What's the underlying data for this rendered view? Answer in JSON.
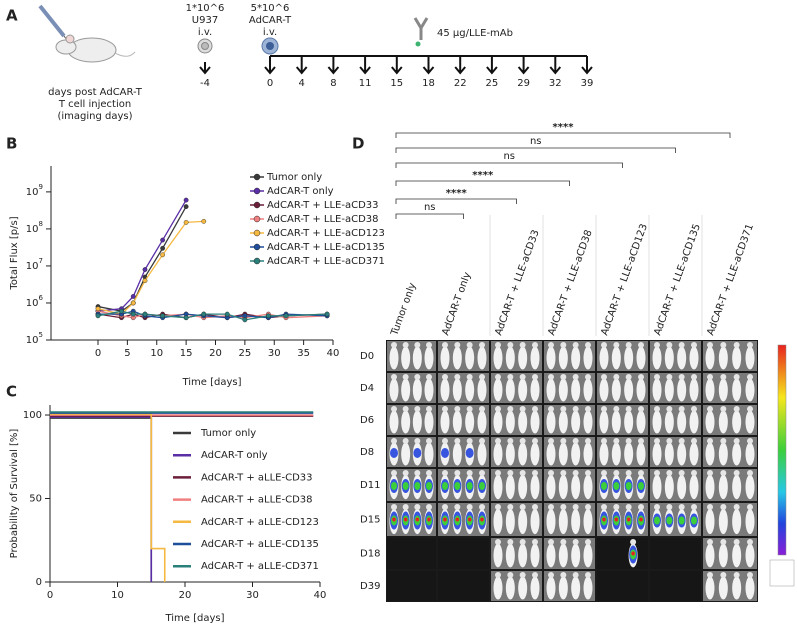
{
  "panel_a": {
    "label": "A",
    "doses": [
      {
        "amount": "1*10^6",
        "cells": "U937",
        "route": "i.v."
      },
      {
        "amount": "5*10^6",
        "cells": "AdCAR-T",
        "route": "i.v."
      }
    ],
    "antibody": "45 µg/LLE-mAb",
    "caption": [
      "days post AdCAR-T",
      "T cell injection",
      "(imaging days)"
    ],
    "days": [
      -4,
      0,
      4,
      8,
      11,
      15,
      18,
      22,
      25,
      29,
      32,
      39
    ]
  },
  "chart_data": [
    {
      "type": "line",
      "label": "B",
      "x_label": "Time [days]",
      "y_label": "Total Flux [p/s]",
      "log_y": true,
      "x": [
        0,
        4,
        6,
        8,
        11,
        15,
        18,
        22,
        25,
        29,
        32,
        39
      ],
      "series": [
        {
          "name": "Tumor only",
          "color": "#3a3a3a",
          "values": [
            800000,
            600000,
            1000000,
            5000000,
            30000000,
            400000000,
            null,
            null,
            null,
            null,
            null,
            null
          ]
        },
        {
          "name": "AdCAR-T only",
          "color": "#5a2ea6",
          "values": [
            600000,
            700000,
            1500000,
            8000000,
            50000000,
            600000000,
            null,
            null,
            null,
            null,
            null,
            null
          ]
        },
        {
          "name": "AdCAR-T + LLE-aCD33",
          "color": "#6b1f3a",
          "values": [
            500000,
            400000,
            500000,
            400000,
            500000,
            400000,
            500000,
            400000,
            500000,
            400000,
            450000,
            500000
          ]
        },
        {
          "name": "AdCAR-T + LLE-aCD38",
          "color": "#f08080",
          "values": [
            600000,
            450000,
            400000,
            500000,
            450000,
            500000,
            400000,
            450000,
            400000,
            500000,
            400000,
            450000
          ]
        },
        {
          "name": "AdCAR-T + LLE-aCD123",
          "color": "#f5b942",
          "values": [
            700000,
            500000,
            1000000,
            4000000,
            20000000,
            150000000,
            160000000,
            null,
            null,
            null,
            null,
            null
          ]
        },
        {
          "name": "AdCAR-T + LLE-aCD135",
          "color": "#1f4e9b",
          "values": [
            500000,
            500000,
            600000,
            450000,
            400000,
            500000,
            450000,
            400000,
            450000,
            400000,
            500000,
            450000
          ]
        },
        {
          "name": "AdCAR-T + LLE-aCD371",
          "color": "#2a7f7a",
          "values": [
            450000,
            600000,
            500000,
            500000,
            450000,
            400000,
            500000,
            500000,
            350000,
            450000,
            450000,
            500000
          ]
        }
      ],
      "xlim": [
        -8,
        40
      ],
      "ylim": [
        100000,
        5000000000
      ],
      "xticks": [
        0,
        5,
        10,
        15,
        20,
        25,
        30,
        35,
        40
      ],
      "yticks": [
        {
          "value": 100000,
          "label": "10",
          "exponent": "5"
        },
        {
          "value": 1000000,
          "label": "10",
          "exponent": "6"
        },
        {
          "value": 10000000,
          "label": "10",
          "exponent": "7"
        },
        {
          "value": 100000000,
          "label": "10",
          "exponent": "8"
        },
        {
          "value": 1000000000,
          "label": "10",
          "exponent": "9"
        }
      ]
    },
    {
      "type": "step",
      "label": "C",
      "x_label": "Time [days]",
      "y_label": "Probability of Survival [%]",
      "series": [
        {
          "name": "Tumor only",
          "color": "#3a3a3a",
          "x": [
            0,
            15,
            15
          ],
          "values": [
            100,
            100,
            0
          ]
        },
        {
          "name": "AdCAR-T only",
          "color": "#5a2ea6",
          "x": [
            0,
            15,
            15
          ],
          "values": [
            100,
            100,
            0
          ]
        },
        {
          "name": "AdCAR-T + aLLE-CD33",
          "color": "#6b1f3a",
          "x": [
            0,
            39
          ],
          "values": [
            100,
            100
          ]
        },
        {
          "name": "AdCAR-T + aLLE-CD38",
          "color": "#f08080",
          "x": [
            0,
            39
          ],
          "values": [
            100,
            100
          ]
        },
        {
          "name": "AdCAR-T + aLLE-CD123",
          "color": "#f5b942",
          "x": [
            0,
            15,
            15,
            17,
            17
          ],
          "values": [
            100,
            100,
            20,
            20,
            0
          ]
        },
        {
          "name": "AdCAR-T + aLLE-CD135",
          "color": "#1f4e9b",
          "x": [
            0,
            39
          ],
          "values": [
            100,
            100
          ]
        },
        {
          "name": "AdCAR-T + aLLE-CD371",
          "color": "#2a7f7a",
          "x": [
            0,
            39
          ],
          "values": [
            100,
            100
          ]
        }
      ],
      "xlim": [
        0,
        40
      ],
      "ylim": [
        0,
        106
      ],
      "xticks": [
        0,
        10,
        20,
        30,
        40
      ],
      "yticks": [
        0,
        50,
        100
      ]
    }
  ],
  "panel_d": {
    "label": "D",
    "columns": [
      "Tumor only",
      "AdCAR-T only",
      "AdCAR-T + LLE-aCD33",
      "AdCAR-T + LLE-aCD38",
      "AdCAR-T + LLE-aCD123",
      "AdCAR-T + LLE-aCD135",
      "AdCAR-T + LLE-aCD371"
    ],
    "rows": [
      "D0",
      "D4",
      "D6",
      "D8",
      "D11",
      "D15",
      "D18",
      "D39"
    ],
    "comparisons": [
      "ns",
      "****",
      "****",
      "ns",
      "ns",
      "****"
    ]
  }
}
